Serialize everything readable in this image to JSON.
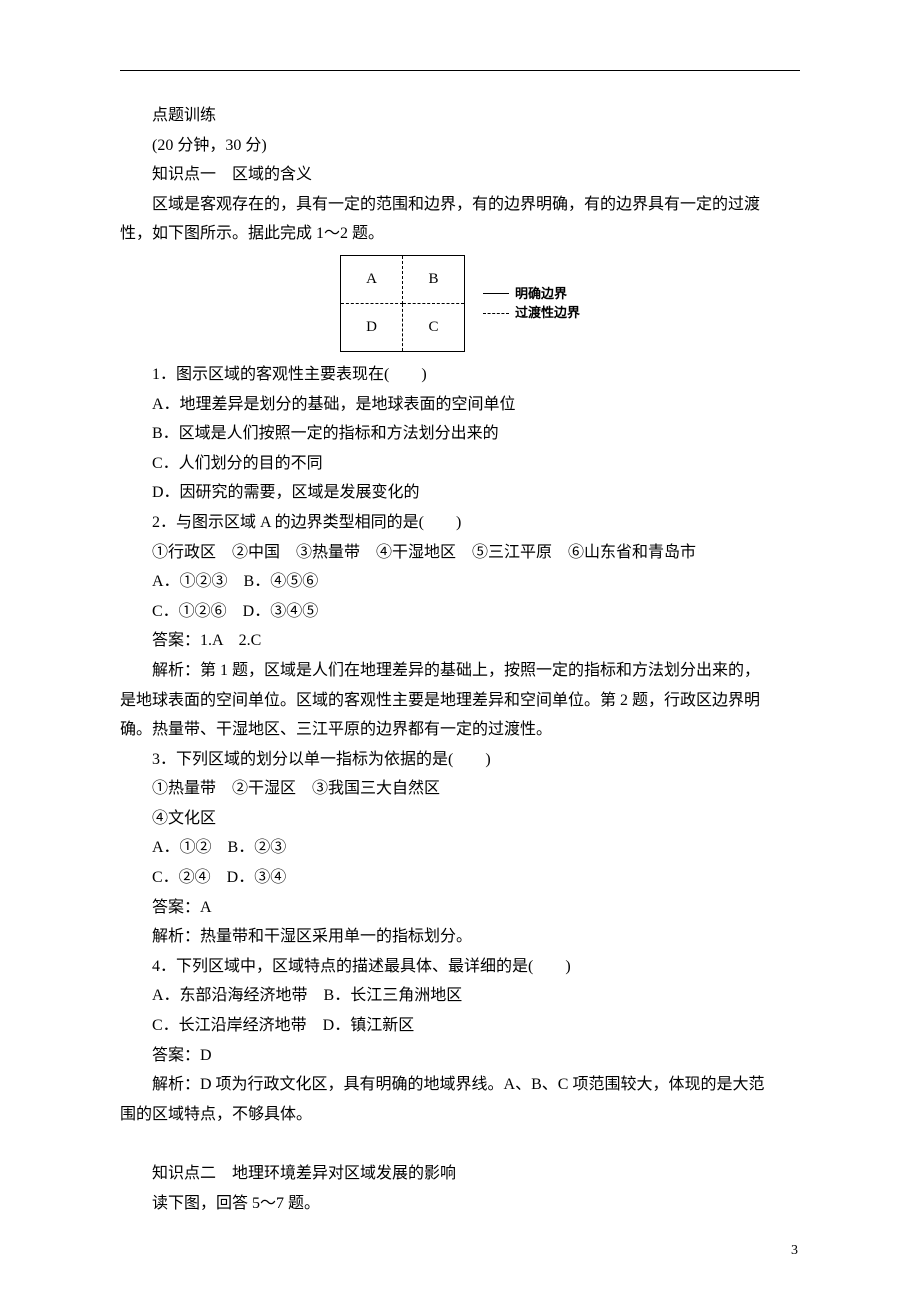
{
  "header": {
    "title": "点题训练",
    "timing": "(20 分钟，30 分)",
    "kp1": "知识点一　区域的含义",
    "intro": "区域是客观存在的，具有一定的范围和边界，有的边界明确，有的边界具有一定的过渡",
    "intro2": "性，如下图所示。据此完成 1～2 题。"
  },
  "diagram": {
    "cells": {
      "a": "A",
      "b": "B",
      "c": "C",
      "d": "D"
    },
    "legend": {
      "solid": "明确边界",
      "dashed": "过渡性边界"
    }
  },
  "q1": {
    "stem": "1．图示区域的客观性主要表现在(　　)",
    "optA": "A．地理差异是划分的基础，是地球表面的空间单位",
    "optB": "B．区域是人们按照一定的指标和方法划分出来的",
    "optC": "C．人们划分的目的不同",
    "optD": "D．因研究的需要，区域是发展变化的"
  },
  "q2": {
    "stem": "2．与图示区域 A 的边界类型相同的是(　　)",
    "items": "①行政区　②中国　③热量带　④干湿地区　⑤三江平原　⑥山东省和青岛市",
    "opts1": "A．①②③　B．④⑤⑥",
    "opts2": "C．①②⑥　D．③④⑤"
  },
  "ans12": {
    "answer": "答案：1.A　2.C",
    "expl1": "解析：第 1 题，区域是人们在地理差异的基础上，按照一定的指标和方法划分出来的，",
    "expl2": "是地球表面的空间单位。区域的客观性主要是地理差异和空间单位。第 2 题，行政区边界明",
    "expl3": "确。热量带、干湿地区、三江平原的边界都有一定的过渡性。"
  },
  "q3": {
    "stem": "3．下列区域的划分以单一指标为依据的是(　　)",
    "items1": "①热量带　②干湿区　③我国三大自然区",
    "items2": "④文化区",
    "opts1": "A．①②　B．②③",
    "opts2": "C．②④　D．③④",
    "answer": "答案：A",
    "expl": "解析：热量带和干湿区采用单一的指标划分。"
  },
  "q4": {
    "stem": "4．下列区域中，区域特点的描述最具体、最详细的是(　　)",
    "opts1": "A．东部沿海经济地带　B．长江三角洲地区",
    "opts2": "C．长江沿岸经济地带　D．镇江新区",
    "answer": "答案：D",
    "expl1": "解析：D 项为行政文化区，具有明确的地域界线。A、B、C 项范围较大，体现的是大范",
    "expl2": "围的区域特点，不够具体。"
  },
  "kp2": {
    "title": "知识点二　地理环境差异对区域发展的影响",
    "instr": "读下图，回答 5～7 题。"
  },
  "page": "3"
}
